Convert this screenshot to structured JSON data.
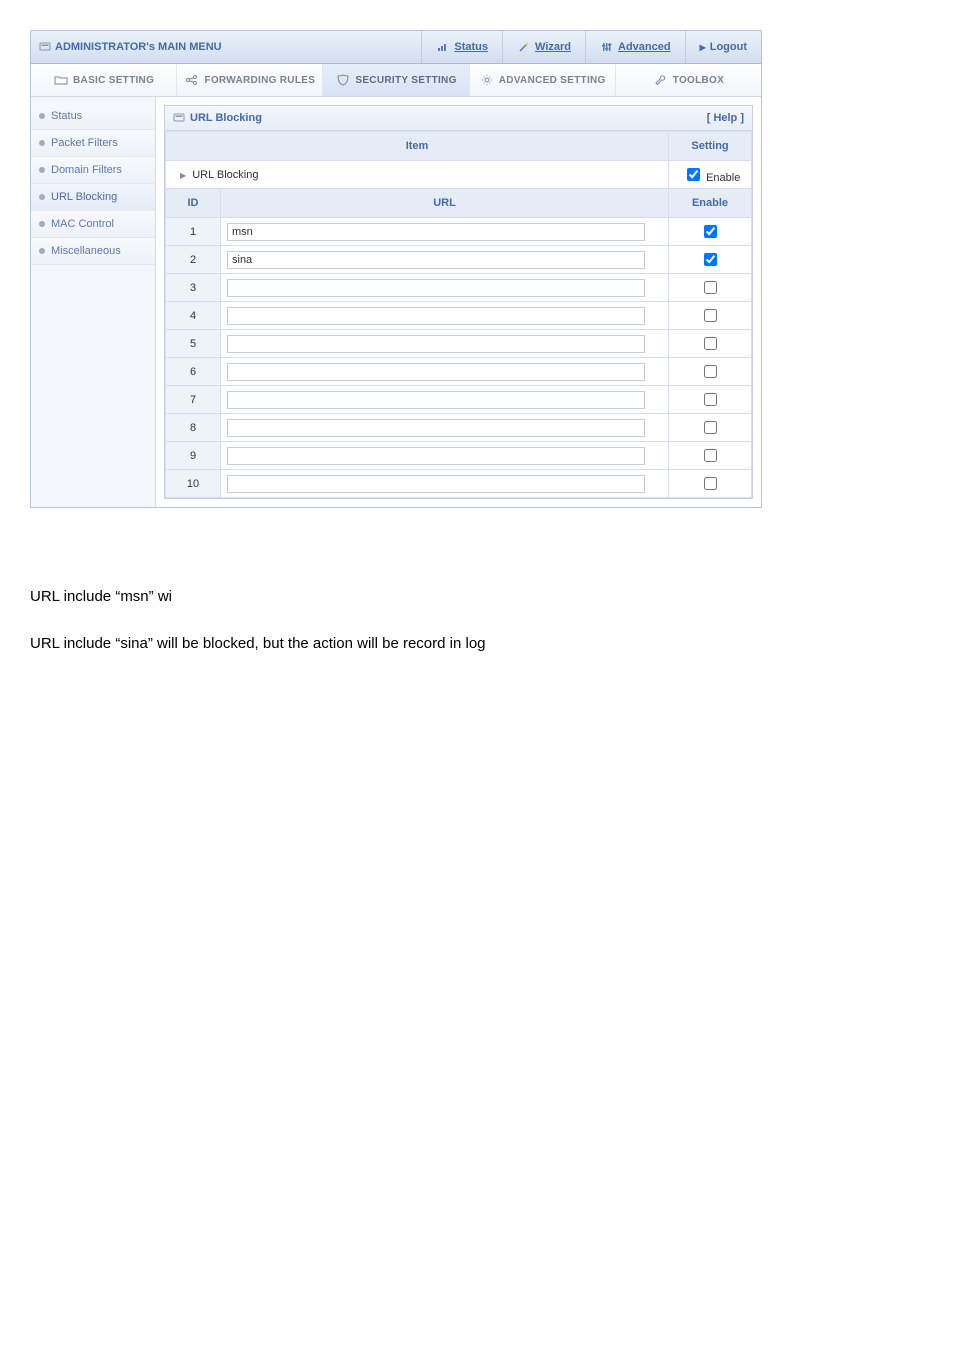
{
  "topbar": {
    "brand": "ADMINISTRATOR's MAIN MENU",
    "links": {
      "status": "Status",
      "wizard": "Wizard",
      "advanced": "Advanced"
    },
    "logout": "Logout"
  },
  "tabs": {
    "basic": "BASIC SETTING",
    "forward": "FORWARDING RULES",
    "security": "SECURITY SETTING",
    "adv": "ADVANCED SETTING",
    "toolbox": "TOOLBOX"
  },
  "sidebar": {
    "items": [
      {
        "label": "Status"
      },
      {
        "label": "Packet Filters"
      },
      {
        "label": "Domain Filters"
      },
      {
        "label": "URL Blocking"
      },
      {
        "label": "MAC Control"
      },
      {
        "label": "Miscellaneous"
      }
    ]
  },
  "panel": {
    "title": "URL Blocking",
    "help": "[ Help ]",
    "headers": {
      "item": "Item",
      "setting": "Setting",
      "id": "ID",
      "url": "URL",
      "enable": "Enable"
    },
    "urlblocking_item_label": "URL Blocking",
    "enable_label": "Enable",
    "enable_checked": true,
    "rows": [
      {
        "id": "1",
        "url": "msn",
        "enabled": true
      },
      {
        "id": "2",
        "url": "sina",
        "enabled": true
      },
      {
        "id": "3",
        "url": "",
        "enabled": false
      },
      {
        "id": "4",
        "url": "",
        "enabled": false
      },
      {
        "id": "5",
        "url": "",
        "enabled": false
      },
      {
        "id": "6",
        "url": "",
        "enabled": false
      },
      {
        "id": "7",
        "url": "",
        "enabled": false
      },
      {
        "id": "8",
        "url": "",
        "enabled": false
      },
      {
        "id": "9",
        "url": "",
        "enabled": false
      },
      {
        "id": "10",
        "url": "",
        "enabled": false
      }
    ]
  },
  "footer": {
    "line1": "URL include “msn” wi",
    "line2": "URL include “sina” will be blocked, but the action will be record in log"
  },
  "colors": {
    "brand_text": "#456aa9",
    "header_grad_top": "#eaf1fa",
    "header_grad_bot": "#d2def0",
    "table_border": "#d8dee9",
    "th_bg": "#e6ecf6"
  }
}
